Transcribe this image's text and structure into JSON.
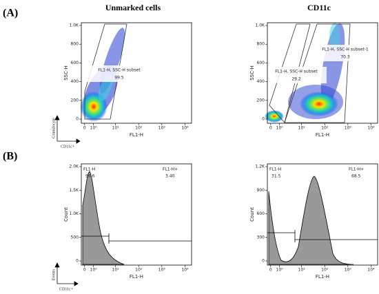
{
  "label_a": "(A)",
  "label_b": "(B)",
  "panels": [
    {
      "title": "Unmarked cells",
      "y_label": "SSC-H",
      "x_label": "FL1-H",
      "yticks": [
        "0",
        "200",
        "400",
        "600",
        "800",
        "1.0K"
      ],
      "xticks": [
        "0",
        "10⁰",
        "10¹",
        "10²",
        "10³",
        "10⁴"
      ],
      "gates": [
        {
          "name": "FL1-H, SSC-H subset",
          "value": "99.5"
        }
      ]
    },
    {
      "title": "CD11c",
      "y_label": "SSC-H",
      "x_label": "FL1-H",
      "yticks": [
        "0",
        "200",
        "400",
        "600",
        "800",
        "1.0K"
      ],
      "xticks": [
        "0",
        "10⁰",
        "10¹",
        "10²",
        "10³",
        "10⁴"
      ],
      "gates": [
        {
          "name": "FL1-H, SSC-H subset",
          "value": "29.2"
        },
        {
          "name": "FL1-H, SSC-H subset-1",
          "value": "70.3"
        }
      ]
    },
    {
      "y_label": "Count",
      "x_label": "FL1-H",
      "yticks": [
        "0",
        "500",
        "1.0K",
        "1.5K",
        "2.0K"
      ],
      "xticks": [
        "0",
        "10⁰",
        "10¹",
        "10²",
        "10³",
        "10⁴"
      ],
      "gates": [
        {
          "name": "FL1-H",
          "value": "96.6"
        },
        {
          "name": "FL1-H+",
          "value": "3.40"
        }
      ]
    },
    {
      "y_label": "Count",
      "x_label": "FL1-H",
      "yticks": [
        "0",
        "300",
        "600",
        "900",
        "1.2K"
      ],
      "xticks": [
        "0",
        "10⁰",
        "10¹",
        "10²",
        "10³",
        "10⁴"
      ],
      "gates": [
        {
          "name": "FL1-H",
          "value": "31.5"
        },
        {
          "name": "FL1-H+",
          "value": "68.5"
        }
      ]
    }
  ],
  "corner_top": {
    "y": "Granulocyte",
    "x": "CD11c+"
  },
  "corner_bottom": {
    "y": "Events",
    "x": "CD11c+"
  }
}
